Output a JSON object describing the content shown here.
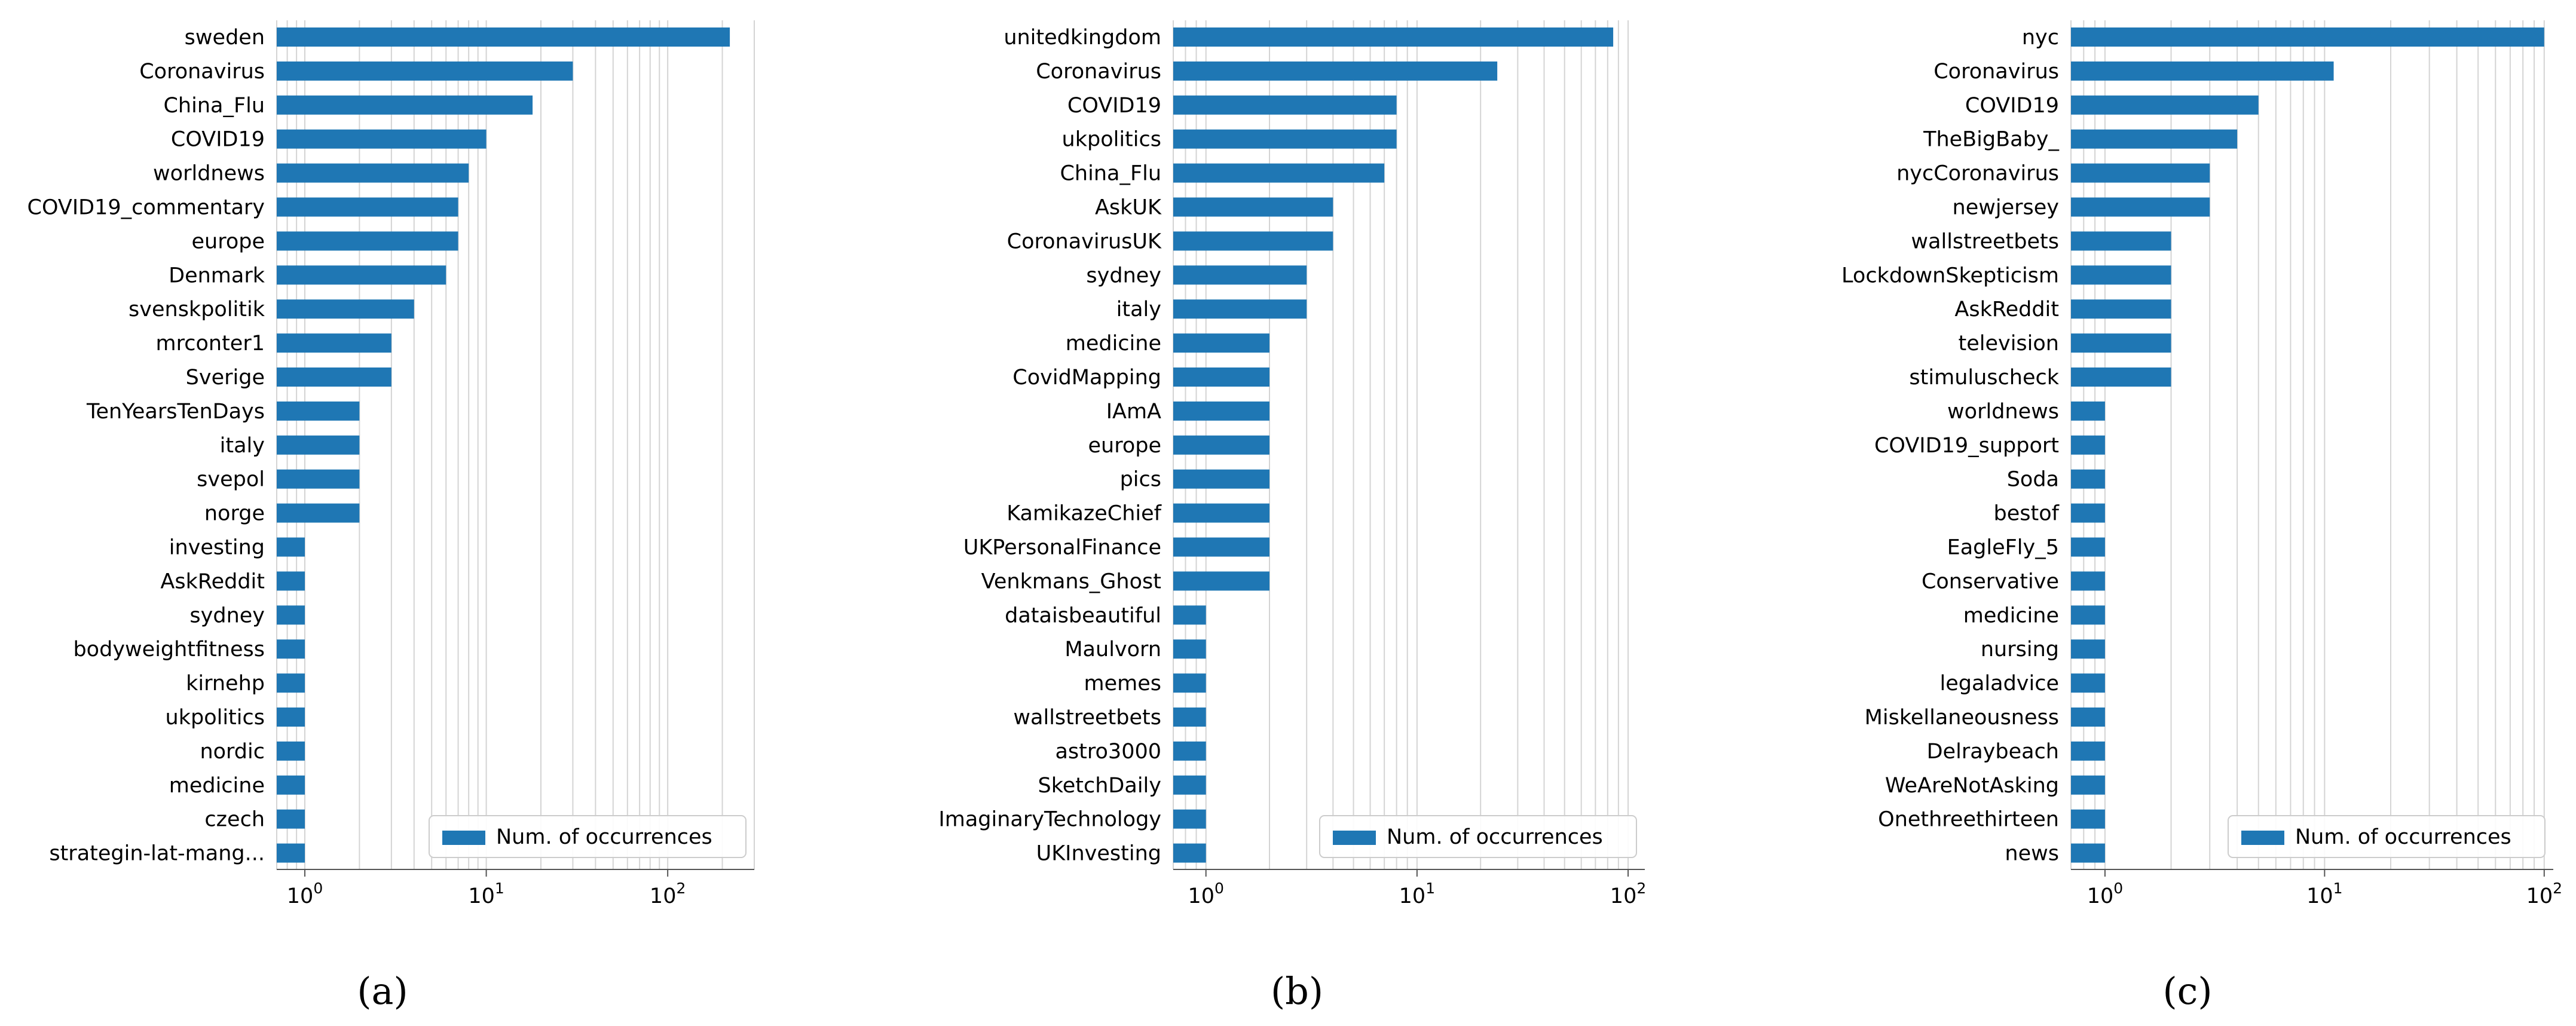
{
  "chart_data": [
    {
      "type": "bar",
      "orientation": "horizontal",
      "xscale": "log",
      "xlim": [
        0.7,
        300
      ],
      "xticks": [
        1,
        10,
        100
      ],
      "xtick_labels": [
        {
          "base": "10",
          "exp": "0"
        },
        {
          "base": "10",
          "exp": "1"
        },
        {
          "base": "10",
          "exp": "2"
        }
      ],
      "legend": "Num. of occurrences",
      "legend_position": "bottom-right",
      "caption": "(a)",
      "categories": [
        "sweden",
        "Coronavirus",
        "China_Flu",
        "COVID19",
        "worldnews",
        "COVID19_commentary",
        "europe",
        "Denmark",
        "svenskpolitik",
        "mrconter1",
        "Sverige",
        "TenYearsTenDays",
        "italy",
        "svepol",
        "norge",
        "investing",
        "AskReddit",
        "sydney",
        "bodyweightfitness",
        "kirnehp",
        "ukpolitics",
        "nordic",
        "medicine",
        "czech",
        "strategin-lat-mang..."
      ],
      "values": [
        220,
        30,
        18,
        10,
        8,
        7,
        7,
        6,
        4,
        3,
        3,
        2,
        2,
        2,
        2,
        1,
        1,
        1,
        1,
        1,
        1,
        1,
        1,
        1,
        1
      ]
    },
    {
      "type": "bar",
      "orientation": "horizontal",
      "xscale": "log",
      "xlim": [
        0.7,
        120
      ],
      "xticks": [
        1,
        10,
        100
      ],
      "xtick_labels": [
        {
          "base": "10",
          "exp": "0"
        },
        {
          "base": "10",
          "exp": "1"
        },
        {
          "base": "10",
          "exp": "2"
        }
      ],
      "legend": "Num. of occurrences",
      "legend_position": "bottom-right",
      "caption": "(b)",
      "categories": [
        "unitedkingdom",
        "Coronavirus",
        "COVID19",
        "ukpolitics",
        "China_Flu",
        "AskUK",
        "CoronavirusUK",
        "sydney",
        "italy",
        "medicine",
        "CovidMapping",
        "IAmA",
        "europe",
        "pics",
        "KamikazeChief",
        "UKPersonalFinance",
        "Venkmans_Ghost",
        "dataisbeautiful",
        "Maulvorn",
        "memes",
        "wallstreetbets",
        "astro3000",
        "SketchDaily",
        "ImaginaryTechnology",
        "UKInvesting"
      ],
      "values": [
        85,
        24,
        8,
        8,
        7,
        4,
        4,
        3,
        3,
        2,
        2,
        2,
        2,
        2,
        2,
        2,
        2,
        1,
        1,
        1,
        1,
        1,
        1,
        1,
        1
      ]
    },
    {
      "type": "bar",
      "orientation": "horizontal",
      "xscale": "log",
      "xlim": [
        0.7,
        110
      ],
      "xticks": [
        1,
        10,
        100
      ],
      "xtick_labels": [
        {
          "base": "10",
          "exp": "0"
        },
        {
          "base": "10",
          "exp": "1"
        },
        {
          "base": "10",
          "exp": "2"
        }
      ],
      "legend": "Num. of occurrences",
      "legend_position": "bottom-right",
      "caption": "(c)",
      "categories": [
        "nyc",
        "Coronavirus",
        "COVID19",
        "TheBigBaby_",
        "nycCoronavirus",
        "newjersey",
        "wallstreetbets",
        "LockdownSkepticism",
        "AskReddit",
        "television",
        "stimuluscheck",
        "worldnews",
        "COVID19_support",
        "Soda",
        "bestof",
        "EagleFly_5",
        "Conservative",
        "medicine",
        "nursing",
        "legaladvice",
        "Miskellaneousness",
        "Delraybeach",
        "WeAreNotAsking",
        "Onethreethirteen",
        "news"
      ],
      "values": [
        100,
        11,
        5,
        4,
        3,
        3,
        2,
        2,
        2,
        2,
        2,
        1,
        1,
        1,
        1,
        1,
        1,
        1,
        1,
        1,
        1,
        1,
        1,
        1,
        1
      ]
    }
  ],
  "colors": {
    "bar": "#1f77b4",
    "grid": "#d4d4d4",
    "axis": "#555555"
  }
}
